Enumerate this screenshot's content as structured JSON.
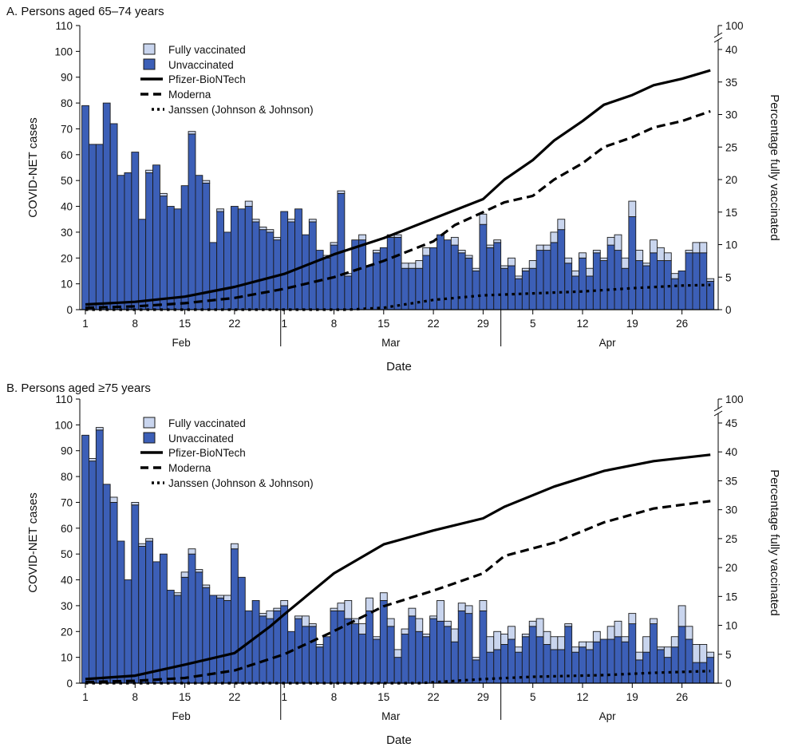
{
  "colors": {
    "unvaccinated": "#3c5fb7",
    "fully_vaccinated": "#c9d5ee",
    "bar_border": "#1a1a1a",
    "lines": "#000000"
  },
  "legend": {
    "fully_vaccinated": "Fully vaccinated",
    "unvaccinated": "Unvaccinated",
    "pfizer": "Pfizer-BioNTech",
    "moderna": "Moderna",
    "janssen": "Janssen (Johnson & Johnson)"
  },
  "chart_data": [
    {
      "type": "bar",
      "stacked": true,
      "title": "A. Persons aged 65–74 years",
      "xlabel": "Date",
      "ylabel": "COVID-NET cases",
      "y2label": "Percentage fully vaccinated",
      "ylim": [
        0,
        110
      ],
      "yticks": [
        0,
        10,
        20,
        30,
        40,
        50,
        60,
        70,
        80,
        90,
        100,
        110
      ],
      "y2lim": [
        0,
        40
      ],
      "y2ticks": [
        0,
        5,
        10,
        15,
        20,
        25,
        30,
        35,
        40
      ],
      "y2_break_top": 100,
      "x_range": [
        "Feb 1",
        "Apr 30"
      ],
      "x_ticks": [
        {
          "date": "Feb 1",
          "label": "1"
        },
        {
          "date": "Feb 8",
          "label": "8"
        },
        {
          "date": "Feb 15",
          "label": "15"
        },
        {
          "date": "Feb 22",
          "label": "22"
        },
        {
          "date": "Mar 1",
          "label": "1"
        },
        {
          "date": "Mar 8",
          "label": "8"
        },
        {
          "date": "Mar 15",
          "label": "15"
        },
        {
          "date": "Mar 22",
          "label": "22"
        },
        {
          "date": "Mar 29",
          "label": "29"
        },
        {
          "date": "Apr 5",
          "label": "5"
        },
        {
          "date": "Apr 12",
          "label": "12"
        },
        {
          "date": "Apr 19",
          "label": "19"
        },
        {
          "date": "Apr 26",
          "label": "26"
        }
      ],
      "months": [
        "Feb",
        "Mar",
        "Apr"
      ],
      "series": [
        {
          "name": "Unvaccinated",
          "values": [
            79,
            64,
            64,
            80,
            72,
            52,
            53,
            61,
            35,
            53,
            56,
            44,
            40,
            39,
            48,
            68,
            52,
            49,
            26,
            38,
            30,
            40,
            39,
            40,
            34,
            31,
            30,
            27,
            38,
            34,
            39,
            29,
            34,
            23,
            20,
            25,
            45,
            13,
            27,
            27,
            17,
            22,
            24,
            28,
            28,
            16,
            16,
            16,
            21,
            24,
            29,
            27,
            25,
            22,
            20,
            15,
            33,
            24,
            26,
            16,
            17,
            12,
            15,
            16,
            23,
            23,
            26,
            31,
            18,
            13,
            20,
            13,
            22,
            19,
            25,
            23,
            16,
            36,
            19,
            17,
            22,
            19,
            19,
            12,
            15,
            22,
            22,
            22,
            11
          ]
        },
        {
          "name": "Fully vaccinated",
          "values": [
            0,
            0,
            0,
            0,
            0,
            0,
            0,
            0,
            0,
            1,
            0,
            1,
            0,
            0,
            0,
            1,
            0,
            1,
            0,
            1,
            0,
            0,
            0,
            2,
            1,
            1,
            1,
            1,
            0,
            1,
            0,
            0,
            1,
            0,
            1,
            1,
            1,
            1,
            0,
            2,
            0,
            1,
            0,
            1,
            1,
            2,
            2,
            3,
            3,
            0,
            0,
            0,
            3,
            1,
            1,
            1,
            4,
            1,
            1,
            1,
            3,
            1,
            1,
            3,
            2,
            2,
            4,
            4,
            2,
            2,
            2,
            3,
            1,
            1,
            3,
            6,
            4,
            6,
            4,
            1,
            5,
            5,
            3,
            2,
            0,
            1,
            4,
            4,
            1
          ]
        }
      ],
      "lines": [
        {
          "name": "Pfizer-BioNTech",
          "style": "solid",
          "points": [
            [
              "Feb 1",
              0.8
            ],
            [
              "Feb 8",
              1.2
            ],
            [
              "Feb 15",
              2
            ],
            [
              "Feb 22",
              3.5
            ],
            [
              "Mar 1",
              5.5
            ],
            [
              "Mar 8",
              8.5
            ],
            [
              "Mar 15",
              11
            ],
            [
              "Mar 22",
              14
            ],
            [
              "Mar 29",
              17
            ],
            [
              "Apr 1",
              20
            ],
            [
              "Apr 5",
              23
            ],
            [
              "Apr 8",
              26
            ],
            [
              "Apr 12",
              29
            ],
            [
              "Apr 15",
              31.5
            ],
            [
              "Apr 19",
              33
            ],
            [
              "Apr 22",
              34.5
            ],
            [
              "Apr 26",
              35.5
            ],
            [
              "Apr 30",
              36.8
            ]
          ]
        },
        {
          "name": "Moderna",
          "style": "dashed",
          "points": [
            [
              "Feb 1",
              0.3
            ],
            [
              "Feb 8",
              0.5
            ],
            [
              "Feb 15",
              1
            ],
            [
              "Feb 22",
              1.8
            ],
            [
              "Mar 1",
              3.2
            ],
            [
              "Mar 8",
              5
            ],
            [
              "Mar 15",
              7.5
            ],
            [
              "Mar 22",
              10.5
            ],
            [
              "Mar 25",
              13
            ],
            [
              "Mar 29",
              15
            ],
            [
              "Apr 1",
              16.5
            ],
            [
              "Apr 5",
              17.5
            ],
            [
              "Apr 8",
              20
            ],
            [
              "Apr 12",
              22.5
            ],
            [
              "Apr 15",
              25
            ],
            [
              "Apr 19",
              26.5
            ],
            [
              "Apr 22",
              28
            ],
            [
              "Apr 26",
              29
            ],
            [
              "Apr 30",
              30.5
            ]
          ]
        },
        {
          "name": "Janssen (Johnson & Johnson)",
          "style": "dotted",
          "points": [
            [
              "Feb 1",
              0
            ],
            [
              "Mar 10",
              0
            ],
            [
              "Mar 15",
              0.3
            ],
            [
              "Mar 22",
              1.5
            ],
            [
              "Mar 29",
              2.2
            ],
            [
              "Apr 5",
              2.5
            ],
            [
              "Apr 12",
              2.8
            ],
            [
              "Apr 19",
              3.3
            ],
            [
              "Apr 26",
              3.7
            ],
            [
              "Apr 30",
              3.8
            ]
          ]
        }
      ]
    },
    {
      "type": "bar",
      "stacked": true,
      "title": "B. Persons aged ≥75 years",
      "xlabel": "Date",
      "ylabel": "COVID-NET cases",
      "y2label": "Percentage fully vaccinated",
      "ylim": [
        0,
        110
      ],
      "yticks": [
        0,
        10,
        20,
        30,
        40,
        50,
        60,
        70,
        80,
        90,
        100,
        110
      ],
      "y2lim": [
        0,
        45
      ],
      "y2ticks": [
        0,
        5,
        10,
        15,
        20,
        25,
        30,
        35,
        40,
        45
      ],
      "y2_break_top": 100,
      "x_range": [
        "Feb 1",
        "Apr 30"
      ],
      "x_ticks": [
        {
          "date": "Feb 1",
          "label": "1"
        },
        {
          "date": "Feb 8",
          "label": "8"
        },
        {
          "date": "Feb 15",
          "label": "15"
        },
        {
          "date": "Feb 22",
          "label": "22"
        },
        {
          "date": "Mar 1",
          "label": "1"
        },
        {
          "date": "Mar 8",
          "label": "8"
        },
        {
          "date": "Mar 15",
          "label": "15"
        },
        {
          "date": "Mar 22",
          "label": "22"
        },
        {
          "date": "Mar 29",
          "label": "29"
        },
        {
          "date": "Apr 5",
          "label": "5"
        },
        {
          "date": "Apr 12",
          "label": "12"
        },
        {
          "date": "Apr 19",
          "label": "19"
        },
        {
          "date": "Apr 26",
          "label": "26"
        }
      ],
      "months": [
        "Feb",
        "Mar",
        "Apr"
      ],
      "series": [
        {
          "name": "Unvaccinated",
          "values": [
            96,
            86,
            98,
            77,
            70,
            55,
            40,
            69,
            53,
            55,
            47,
            50,
            36,
            34,
            41,
            50,
            43,
            37,
            34,
            33,
            32,
            52,
            41,
            28,
            32,
            26,
            25,
            28,
            30,
            20,
            25,
            22,
            22,
            14,
            18,
            28,
            28,
            25,
            23,
            19,
            28,
            17,
            32,
            22,
            10,
            19,
            26,
            20,
            18,
            25,
            24,
            22,
            16,
            28,
            27,
            9,
            28,
            12,
            13,
            15,
            17,
            12,
            18,
            22,
            18,
            15,
            13,
            13,
            22,
            12,
            14,
            13,
            16,
            17,
            17,
            18,
            16,
            23,
            9,
            12,
            23,
            13,
            10,
            14,
            22,
            17,
            8,
            8,
            10
          ]
        },
        {
          "name": "Fully vaccinated",
          "values": [
            0,
            1,
            1,
            0,
            2,
            0,
            0,
            1,
            1,
            1,
            0,
            0,
            0,
            1,
            2,
            2,
            1,
            1,
            0,
            1,
            2,
            2,
            0,
            0,
            0,
            1,
            3,
            1,
            2,
            0,
            1,
            4,
            1,
            1,
            0,
            1,
            3,
            7,
            2,
            4,
            5,
            1,
            3,
            3,
            3,
            2,
            3,
            5,
            1,
            1,
            8,
            2,
            5,
            3,
            3,
            1,
            4,
            6,
            7,
            4,
            5,
            2,
            1,
            2,
            7,
            5,
            5,
            5,
            1,
            2,
            2,
            3,
            4,
            0,
            5,
            6,
            2,
            4,
            3,
            6,
            2,
            1,
            4,
            4,
            8,
            5,
            7,
            7,
            2
          ]
        }
      ],
      "lines": [
        {
          "name": "Pfizer-BioNTech",
          "style": "solid",
          "points": [
            [
              "Feb 1",
              0.7
            ],
            [
              "Feb 8",
              1.3
            ],
            [
              "Feb 15",
              3.2
            ],
            [
              "Feb 22",
              5.2
            ],
            [
              "Feb 27",
              9.8
            ],
            [
              "Mar 1",
              11.9
            ],
            [
              "Mar 8",
              19
            ],
            [
              "Mar 15",
              24
            ],
            [
              "Mar 22",
              26.4
            ],
            [
              "Mar 29",
              28.5
            ],
            [
              "Apr 1",
              30.5
            ],
            [
              "Apr 8",
              34
            ],
            [
              "Apr 15",
              36.7
            ],
            [
              "Apr 22",
              38.4
            ],
            [
              "Apr 30",
              39.5
            ]
          ]
        },
        {
          "name": "Moderna",
          "style": "dashed",
          "points": [
            [
              "Feb 1",
              0.2
            ],
            [
              "Feb 8",
              0.4
            ],
            [
              "Feb 15",
              0.9
            ],
            [
              "Feb 22",
              2.2
            ],
            [
              "Mar 1",
              5
            ],
            [
              "Mar 8",
              9
            ],
            [
              "Mar 15",
              13.3
            ],
            [
              "Mar 22",
              16
            ],
            [
              "Mar 29",
              19
            ],
            [
              "Apr 1",
              22
            ],
            [
              "Apr 8",
              24.3
            ],
            [
              "Apr 15",
              27.8
            ],
            [
              "Apr 22",
              30.2
            ],
            [
              "Apr 30",
              31.5
            ]
          ]
        },
        {
          "name": "Janssen (Johnson & Johnson)",
          "style": "dotted",
          "points": [
            [
              "Feb 1",
              0
            ],
            [
              "Mar 20",
              0
            ],
            [
              "Mar 29",
              0.7
            ],
            [
              "Apr 5",
              1.1
            ],
            [
              "Apr 15",
              1.4
            ],
            [
              "Apr 22",
              1.8
            ],
            [
              "Apr 30",
              2.1
            ]
          ]
        }
      ]
    }
  ]
}
